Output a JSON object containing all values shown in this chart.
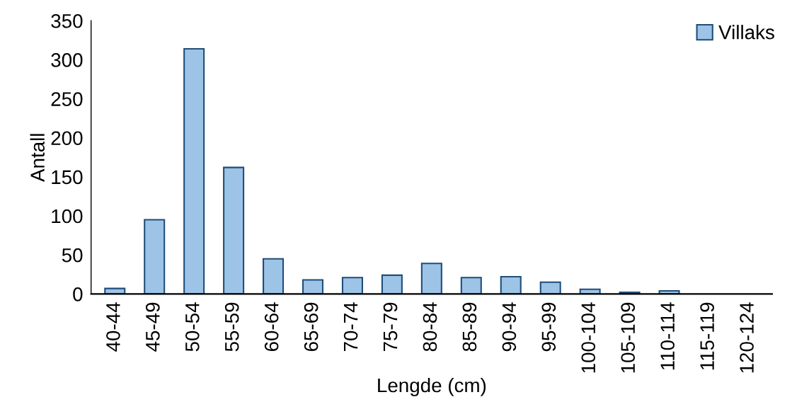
{
  "chart_data": {
    "type": "bar",
    "xlabel": "Lengde (cm)",
    "ylabel": "Antall",
    "categories": [
      "40-44",
      "45-49",
      "50-54",
      "55-59",
      "60-64",
      "65-69",
      "70-74",
      "75-79",
      "80-84",
      "85-89",
      "90-94",
      "95-99",
      "100-104",
      "105-109",
      "110-114",
      "115-119",
      "120-124"
    ],
    "series": [
      {
        "name": "Villaks",
        "color": "#9dc3e6",
        "values": [
          7,
          95,
          314,
          162,
          45,
          18,
          21,
          24,
          39,
          21,
          22,
          15,
          6,
          2,
          4,
          0,
          0
        ]
      }
    ],
    "ylim": [
      0,
      350
    ],
    "yticks": [
      0,
      50,
      100,
      150,
      200,
      250,
      300,
      350
    ],
    "grid": false,
    "legend": "top right"
  }
}
